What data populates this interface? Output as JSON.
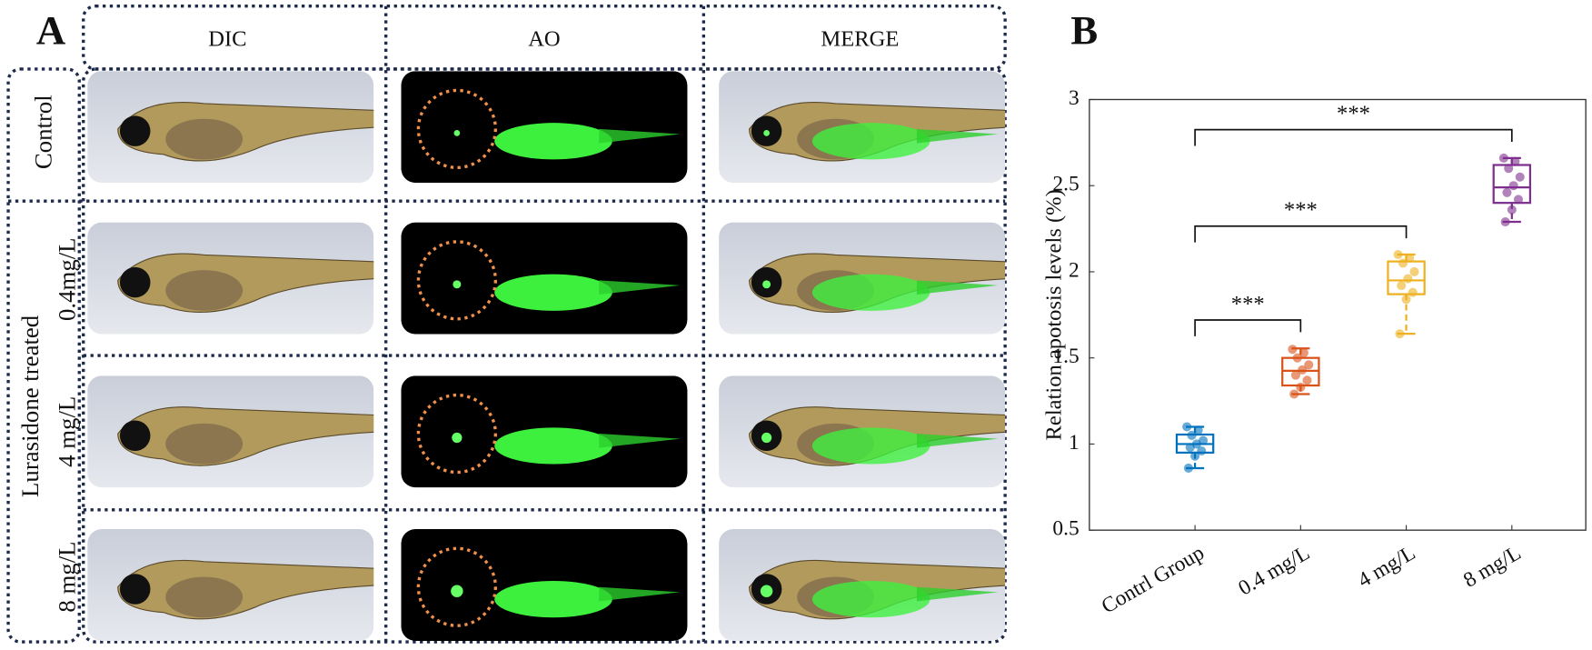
{
  "panel_labels": [
    "A",
    "B"
  ],
  "panel_a": {
    "columns": [
      "DIC",
      "AO",
      "MERGE"
    ],
    "rows": [
      "Control",
      "0.4mg/L",
      "4 mg/L",
      "8 mg/L"
    ],
    "group_label": "Lurasidone treated"
  },
  "chart_data": {
    "type": "box",
    "y_label": "Relation apotosis levels (%)",
    "categories": [
      "Contrl Group",
      "0.4 mg/L",
      "4 mg/L",
      "8 mg/L"
    ],
    "colors": [
      "#0072BD",
      "#D95319",
      "#EDB120",
      "#7E2F8E"
    ],
    "min": [
      0.86,
      1.29,
      1.64,
      2.29
    ],
    "q1": [
      0.95,
      1.34,
      1.87,
      2.4
    ],
    "median": [
      1.0,
      1.425,
      1.95,
      2.49
    ],
    "q3": [
      1.055,
      1.5,
      2.06,
      2.62
    ],
    "max": [
      1.1,
      1.555,
      2.1,
      2.66
    ],
    "points": [
      [
        1.1,
        1.08,
        1.05,
        1.02,
        1.0,
        0.98,
        0.96,
        0.93,
        0.86
      ],
      [
        1.55,
        1.53,
        1.5,
        1.46,
        1.43,
        1.4,
        1.37,
        1.33,
        1.29
      ],
      [
        2.1,
        2.08,
        2.05,
        2.0,
        1.96,
        1.92,
        1.88,
        1.84,
        1.64
      ],
      [
        2.66,
        2.64,
        2.6,
        2.55,
        2.5,
        2.46,
        2.42,
        2.36,
        2.29
      ]
    ],
    "comparisons": [
      {
        "label": "***",
        "pair": [
          "Contrl Group",
          "0.4 mg/L"
        ]
      },
      {
        "label": "***",
        "pair": [
          "Contrl Group",
          "4 mg/L"
        ]
      },
      {
        "label": "***",
        "pair": [
          "Contrl Group",
          "8 mg/L"
        ]
      }
    ],
    "ylim": [
      0.5,
      3
    ],
    "yticks": [
      0.5,
      1,
      1.5,
      2,
      2.5,
      3
    ]
  }
}
